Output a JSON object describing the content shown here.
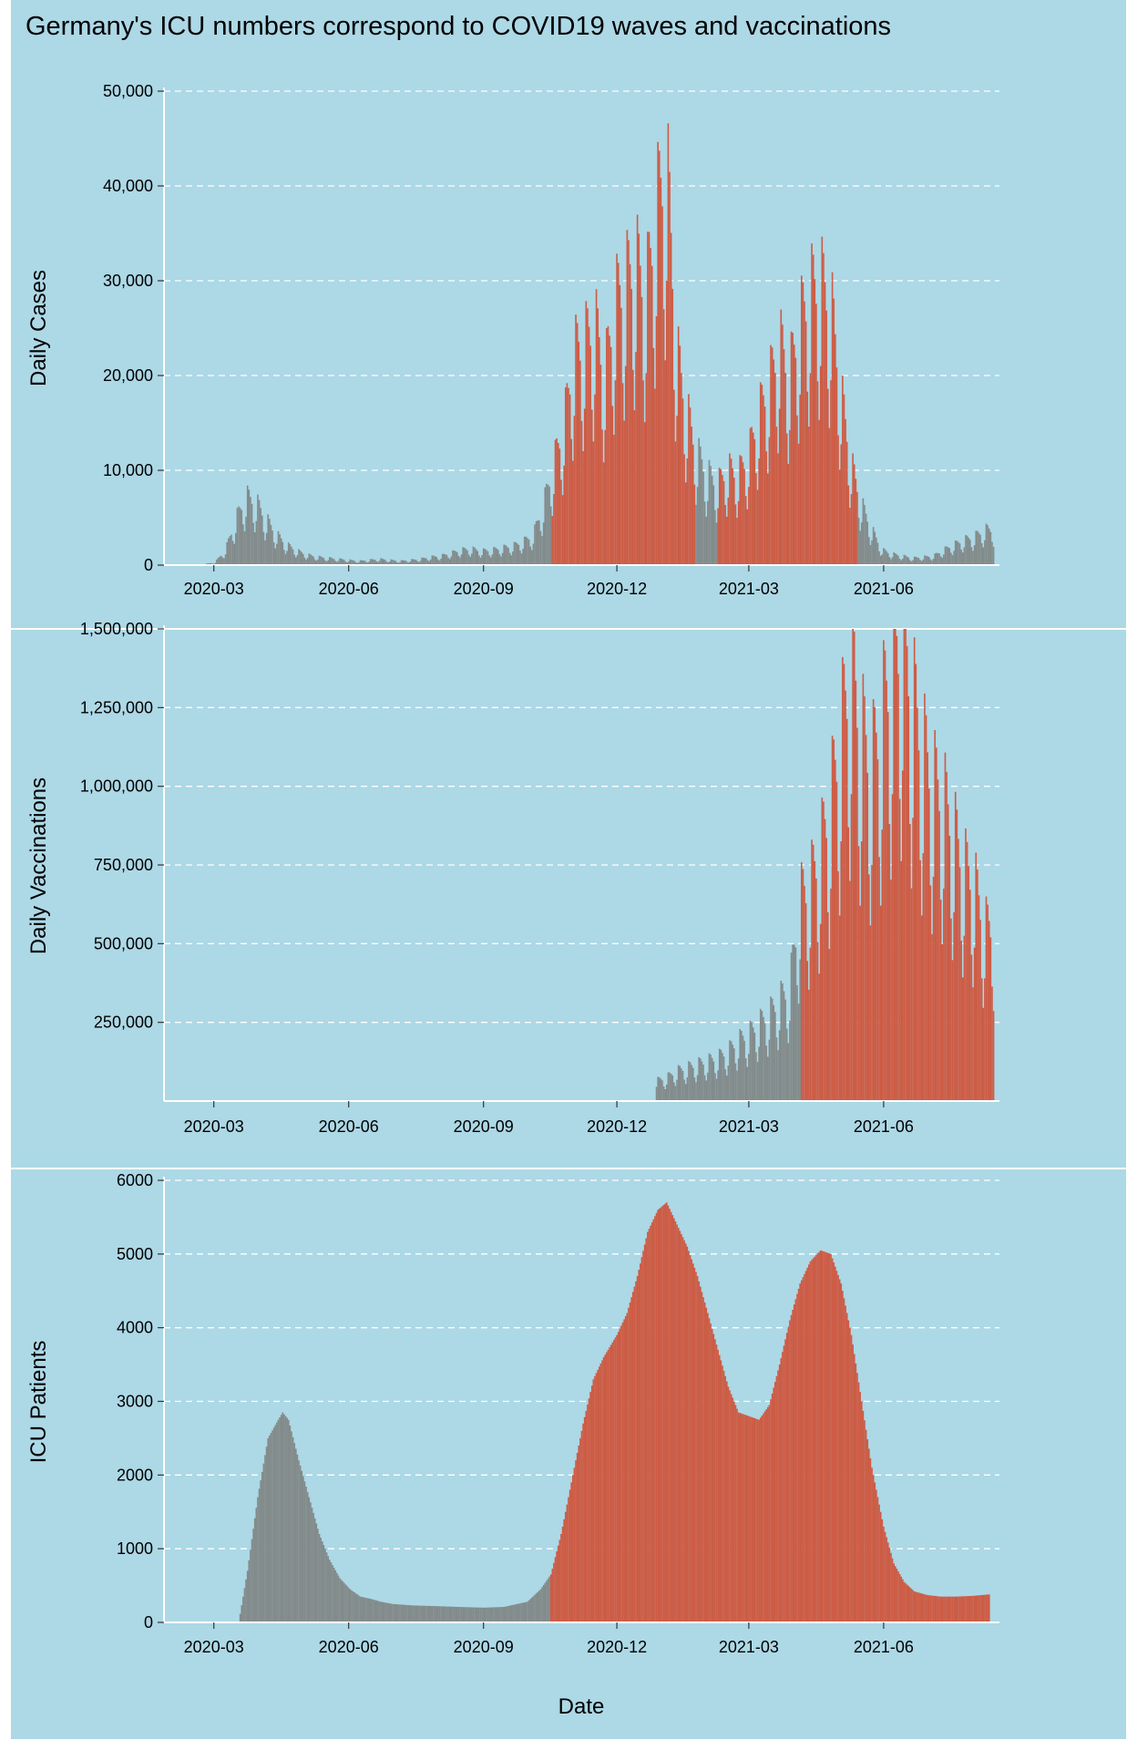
{
  "title": "Germany's ICU numbers correspond to COVID19 waves and vaccinations",
  "colors": {
    "background": "#add8e6",
    "highlight": "#cd5c45",
    "base": "#838b8b",
    "grid": "#ffffff"
  },
  "x_ticks": [
    "2020-03",
    "2020-06",
    "2020-09",
    "2020-12",
    "2021-03",
    "2021-06"
  ],
  "xlabel": "Date",
  "chart_data": [
    {
      "type": "bar",
      "ylabel": "Daily Cases",
      "x_range": [
        "2020-01-27",
        "2021-08-19"
      ],
      "ylim": [
        0,
        50000
      ],
      "y_ticks": [
        "0",
        "10,000",
        "20,000",
        "30,000",
        "40,000",
        "50,000"
      ],
      "y_tick_values": [
        0,
        10000,
        20000,
        30000,
        40000,
        50000
      ],
      "grid": "horizontal dashed",
      "highlight_periods": [
        [
          "2020-10-18",
          "2021-01-23"
        ],
        [
          "2021-02-08",
          "2021-05-14"
        ]
      ],
      "x": [
        "2020-02-24",
        "2020-03-02",
        "2020-03-09",
        "2020-03-16",
        "2020-03-23",
        "2020-03-30",
        "2020-04-06",
        "2020-04-13",
        "2020-04-20",
        "2020-04-27",
        "2020-05-04",
        "2020-05-11",
        "2020-05-18",
        "2020-05-25",
        "2020-06-01",
        "2020-06-08",
        "2020-06-15",
        "2020-06-22",
        "2020-06-29",
        "2020-07-06",
        "2020-07-13",
        "2020-07-20",
        "2020-07-27",
        "2020-08-03",
        "2020-08-10",
        "2020-08-17",
        "2020-08-24",
        "2020-08-31",
        "2020-09-07",
        "2020-09-14",
        "2020-09-21",
        "2020-09-28",
        "2020-10-05",
        "2020-10-12",
        "2020-10-19",
        "2020-10-26",
        "2020-11-02",
        "2020-11-09",
        "2020-11-16",
        "2020-11-23",
        "2020-11-30",
        "2020-12-07",
        "2020-12-14",
        "2020-12-21",
        "2020-12-28",
        "2021-01-04",
        "2021-01-11",
        "2021-01-18",
        "2021-01-25",
        "2021-02-01",
        "2021-02-08",
        "2021-02-15",
        "2021-02-22",
        "2021-03-01",
        "2021-03-08",
        "2021-03-15",
        "2021-03-22",
        "2021-03-29",
        "2021-04-05",
        "2021-04-12",
        "2021-04-19",
        "2021-04-26",
        "2021-05-03",
        "2021-05-10",
        "2021-05-17",
        "2021-05-24",
        "2021-05-31",
        "2021-06-07",
        "2021-06-14",
        "2021-06-21",
        "2021-06-28",
        "2021-07-05",
        "2021-07-12",
        "2021-07-19",
        "2021-07-26",
        "2021-08-02",
        "2021-08-09"
      ],
      "values": [
        100,
        300,
        1500,
        4500,
        6800,
        6200,
        4500,
        3000,
        2000,
        1400,
        1000,
        800,
        700,
        600,
        500,
        400,
        500,
        600,
        500,
        400,
        500,
        600,
        800,
        900,
        1200,
        1500,
        1600,
        1400,
        1500,
        1700,
        1900,
        2300,
        3000,
        6000,
        10000,
        14000,
        21000,
        22000,
        24000,
        19000,
        26000,
        28000,
        30000,
        27000,
        35000,
        40000,
        21000,
        15000,
        11000,
        9000,
        8000,
        9500,
        9000,
        11000,
        15000,
        18000,
        22000,
        19000,
        24000,
        27000,
        28000,
        26000,
        17000,
        10000,
        6000,
        3500,
        1500,
        1100,
        900,
        700,
        800,
        900,
        1500,
        2000,
        2500,
        2800,
        3500
      ]
    },
    {
      "type": "bar",
      "ylabel": "Daily Vaccinations",
      "x_range": [
        "2020-01-27",
        "2021-08-19"
      ],
      "ylim": [
        0,
        1500000
      ],
      "y_ticks": [
        "250,000",
        "500,000",
        "750,000",
        "1,000,000",
        "1,250,000",
        "1,500,000"
      ],
      "y_tick_values": [
        250000,
        500000,
        750000,
        1000000,
        1250000,
        1500000
      ],
      "grid": "horizontal dashed",
      "highlight_periods": [
        [
          "2021-04-06",
          "2021-08-19"
        ]
      ],
      "x": [
        "2020-12-28",
        "2021-01-04",
        "2021-01-11",
        "2021-01-18",
        "2021-01-25",
        "2021-02-01",
        "2021-02-08",
        "2021-02-15",
        "2021-02-22",
        "2021-03-01",
        "2021-03-08",
        "2021-03-15",
        "2021-03-22",
        "2021-03-29",
        "2021-04-05",
        "2021-04-12",
        "2021-04-19",
        "2021-04-26",
        "2021-05-03",
        "2021-05-10",
        "2021-05-17",
        "2021-05-24",
        "2021-05-31",
        "2021-06-07",
        "2021-06-14",
        "2021-06-21",
        "2021-06-28",
        "2021-07-05",
        "2021-07-12",
        "2021-07-19",
        "2021-07-26",
        "2021-08-02",
        "2021-08-09"
      ],
      "values": [
        60000,
        70000,
        90000,
        100000,
        110000,
        120000,
        130000,
        150000,
        180000,
        200000,
        230000,
        260000,
        300000,
        340000,
        600000,
        650000,
        750000,
        900000,
        1100000,
        1300000,
        1100000,
        1000000,
        1150000,
        1300000,
        1400000,
        1200000,
        1050000,
        950000,
        900000,
        800000,
        700000,
        650000,
        520000
      ]
    },
    {
      "type": "area",
      "ylabel": "ICU Patients",
      "x_range": [
        "2020-01-27",
        "2021-08-19"
      ],
      "ylim": [
        0,
        6000
      ],
      "y_ticks": [
        "0",
        "1000",
        "2000",
        "3000",
        "4000",
        "5000",
        "6000"
      ],
      "y_tick_values": [
        0,
        1000,
        2000,
        3000,
        4000,
        5000,
        6000
      ],
      "grid": "horizontal dashed",
      "highlight_from": "2020-10-17",
      "x": [
        "2020-03-18",
        "2020-03-24",
        "2020-03-31",
        "2020-04-07",
        "2020-04-14",
        "2020-04-17",
        "2020-04-21",
        "2020-04-28",
        "2020-05-05",
        "2020-05-12",
        "2020-05-19",
        "2020-05-26",
        "2020-06-02",
        "2020-06-09",
        "2020-06-16",
        "2020-06-23",
        "2020-07-01",
        "2020-07-15",
        "2020-08-01",
        "2020-08-15",
        "2020-09-01",
        "2020-09-15",
        "2020-10-01",
        "2020-10-10",
        "2020-10-17",
        "2020-10-24",
        "2020-11-01",
        "2020-11-08",
        "2020-11-15",
        "2020-11-22",
        "2020-12-01",
        "2020-12-08",
        "2020-12-15",
        "2020-12-22",
        "2020-12-29",
        "2021-01-04",
        "2021-01-11",
        "2021-01-18",
        "2021-01-25",
        "2021-02-01",
        "2021-02-08",
        "2021-02-15",
        "2021-02-22",
        "2021-03-01",
        "2021-03-08",
        "2021-03-15",
        "2021-03-22",
        "2021-03-29",
        "2021-04-05",
        "2021-04-12",
        "2021-04-19",
        "2021-04-26",
        "2021-05-03",
        "2021-05-10",
        "2021-05-17",
        "2021-05-24",
        "2021-06-01",
        "2021-06-08",
        "2021-06-15",
        "2021-06-22",
        "2021-07-01",
        "2021-07-10",
        "2021-07-20",
        "2021-08-01",
        "2021-08-12"
      ],
      "values": [
        0,
        700,
        1700,
        2500,
        2750,
        2850,
        2750,
        2200,
        1700,
        1200,
        850,
        600,
        450,
        350,
        320,
        280,
        250,
        230,
        220,
        210,
        200,
        210,
        280,
        450,
        650,
        1200,
        2000,
        2700,
        3300,
        3600,
        3900,
        4200,
        4700,
        5300,
        5600,
        5700,
        5400,
        5100,
        4700,
        4200,
        3700,
        3200,
        2850,
        2800,
        2750,
        2950,
        3500,
        4100,
        4600,
        4900,
        5050,
        5000,
        4600,
        3900,
        3000,
        2100,
        1300,
        800,
        550,
        420,
        370,
        350,
        350,
        360,
        380
      ]
    }
  ]
}
